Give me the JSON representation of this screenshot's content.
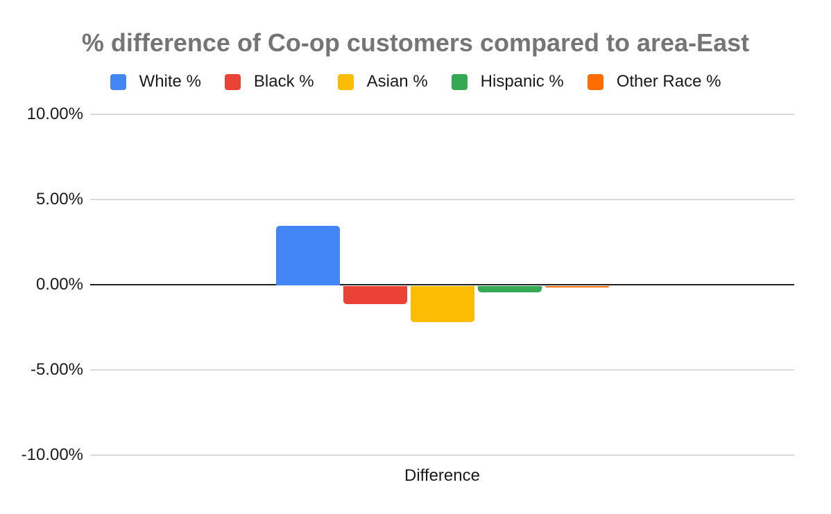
{
  "chart": {
    "background_color": "#ffffff",
    "title_color": "#757575",
    "text_color": "#1a1a1a",
    "gridline_color": "#d9d9d9",
    "zero_line_color": "#212121"
  },
  "chart_data": {
    "type": "bar",
    "title": "% difference of Co-op customers compared to area-East",
    "xlabel": "Difference",
    "categories": [
      "Difference"
    ],
    "series": [
      {
        "name": "White %",
        "color": "#4285F4",
        "value": 3.4
      },
      {
        "name": "Black %",
        "color": "#EA4335",
        "value": -1.15
      },
      {
        "name": "Asian %",
        "color": "#FBBC04",
        "value": -2.2
      },
      {
        "name": "Hispanic %",
        "color": "#34A853",
        "value": -0.45
      },
      {
        "name": "Other Race %",
        "color": "#FF6D01",
        "value": -0.15
      }
    ],
    "ylim": [
      -10,
      10
    ],
    "y_ticks": [
      {
        "value": 10,
        "label": "10.00%"
      },
      {
        "value": 5,
        "label": "5.00%"
      },
      {
        "value": 0,
        "label": "0.00%"
      },
      {
        "value": -5,
        "label": "-5.00%"
      },
      {
        "value": -10,
        "label": "-10.00%"
      }
    ],
    "grid": true,
    "legend_position": "top"
  }
}
